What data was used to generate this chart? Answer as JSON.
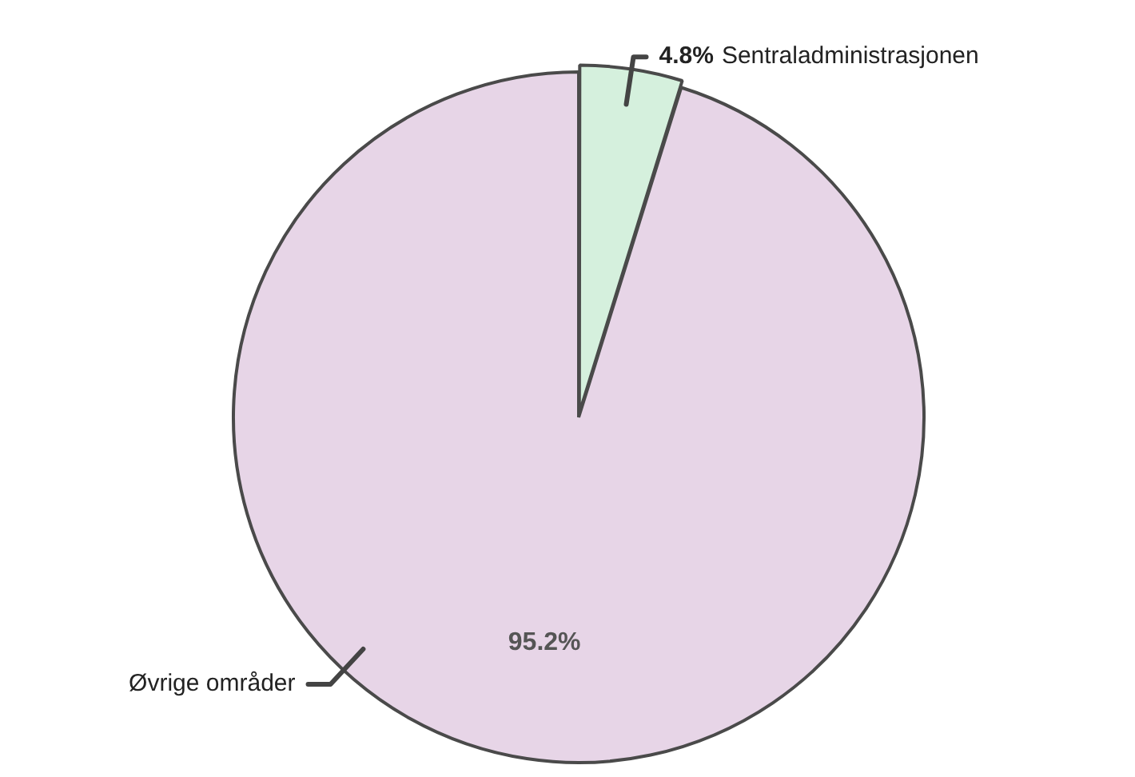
{
  "chart_data": {
    "type": "pie",
    "categories": [
      "Sentraladministrasjonen",
      "Øvrige områder"
    ],
    "values": [
      4.8,
      95.2
    ],
    "value_labels": [
      "4.8%",
      "95.2%"
    ],
    "colors": [
      "#d5f0dd",
      "#e7d5e7"
    ],
    "legend": false
  }
}
